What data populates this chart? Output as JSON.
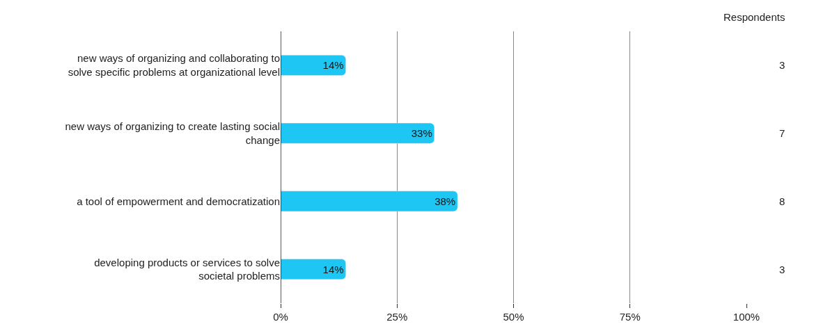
{
  "chart_data": {
    "type": "bar",
    "orientation": "horizontal",
    "categories": [
      "new ways of organizing and collaborating to solve specific problems at organizational level",
      "new ways of organizing to create lasting social change",
      "a tool of empowerment and democratization",
      "developing products or services to solve societal problems"
    ],
    "values": [
      14,
      33,
      38,
      14
    ],
    "value_labels": [
      "14%",
      "33%",
      "38%",
      "14%"
    ],
    "color": "#1ec6f3",
    "xlim": [
      0,
      100
    ],
    "xticks": [
      {
        "value": 0,
        "label": "0%"
      },
      {
        "value": 25,
        "label": "25%"
      },
      {
        "value": 50,
        "label": "50%"
      },
      {
        "value": 75,
        "label": "75%"
      },
      {
        "value": 100,
        "label": "100%"
      }
    ],
    "grid": "x",
    "annotations": [
      "Respondents",
      "3",
      "7",
      "8",
      "3"
    ]
  }
}
